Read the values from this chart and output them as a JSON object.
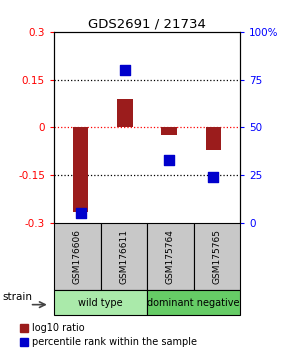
{
  "title": "GDS2691 / 21734",
  "samples": [
    "GSM176606",
    "GSM176611",
    "GSM175764",
    "GSM175765"
  ],
  "log10_ratio": [
    -0.265,
    0.09,
    -0.025,
    -0.07
  ],
  "percentile_rank": [
    5,
    80,
    33,
    24
  ],
  "ylim_left": [
    -0.3,
    0.3
  ],
  "ylim_right": [
    0,
    100
  ],
  "yticks_left": [
    -0.3,
    -0.15,
    0,
    0.15,
    0.3
  ],
  "yticks_right": [
    0,
    25,
    50,
    75,
    100
  ],
  "bar_color": "#9B1C1C",
  "dot_color": "#0000CC",
  "groups": [
    {
      "label": "wild type",
      "color": "#AAEAAA",
      "indices": [
        0,
        1
      ]
    },
    {
      "label": "dominant negative",
      "color": "#66CC66",
      "indices": [
        2,
        3
      ]
    }
  ],
  "legend_bar_label": "log10 ratio",
  "legend_dot_label": "percentile rank within the sample",
  "strain_label": "strain",
  "bar_width": 0.35,
  "dot_size": 45,
  "sample_box_color": "#C8C8C8",
  "bg_color": "#FFFFFF"
}
